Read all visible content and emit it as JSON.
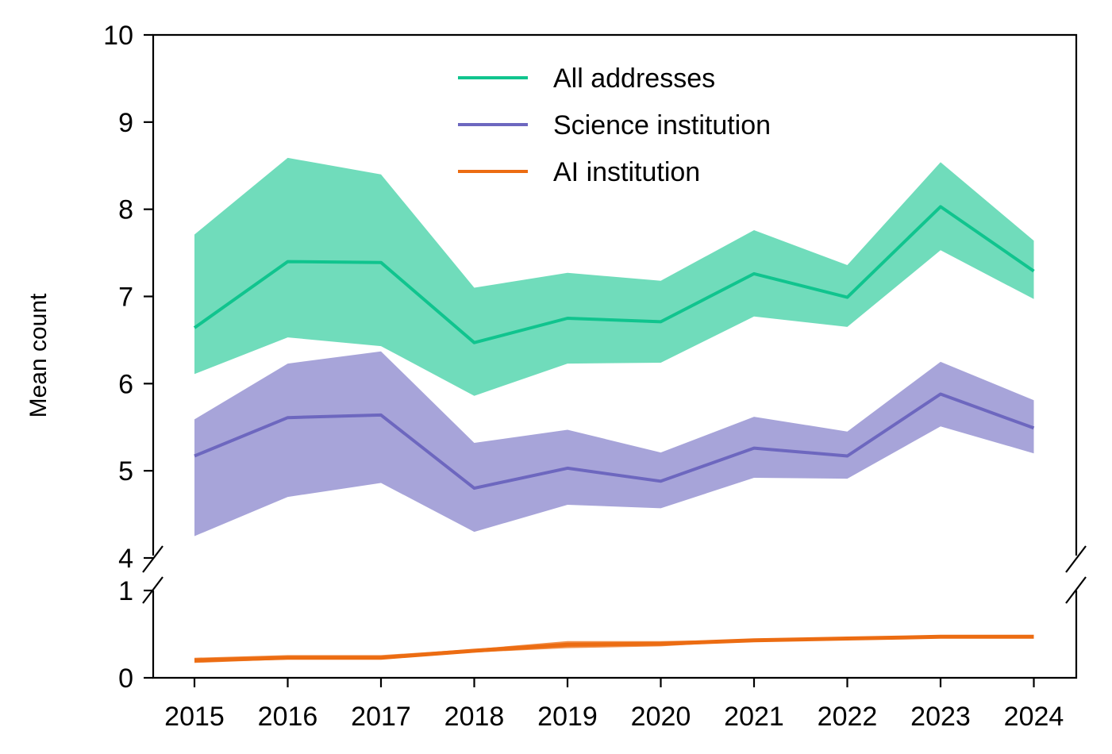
{
  "chart_data": {
    "type": "line",
    "ylabel": "Mean count",
    "xlabel": "",
    "x": [
      2015,
      2016,
      2017,
      2018,
      2019,
      2020,
      2021,
      2022,
      2023,
      2024
    ],
    "broken_y_axis": true,
    "upper_panel": {
      "ylim": [
        4,
        10
      ],
      "yticks": [
        4,
        5,
        6,
        7,
        8,
        9,
        10
      ]
    },
    "lower_panel": {
      "ylim": [
        0,
        1
      ],
      "yticks": [
        0,
        1
      ]
    },
    "legend_position": "top-center",
    "series": [
      {
        "name": "All addresses",
        "color": "#10c48e",
        "band_color": "#9de9d3",
        "panel": "upper",
        "values": [
          6.64,
          7.4,
          7.39,
          6.47,
          6.75,
          6.71,
          7.26,
          6.99,
          8.03,
          7.29
        ],
        "ci_low": [
          6.11,
          6.53,
          6.43,
          5.86,
          6.23,
          6.24,
          6.77,
          6.65,
          7.53,
          6.97
        ],
        "ci_high": [
          7.71,
          8.59,
          8.4,
          7.1,
          7.27,
          7.18,
          7.76,
          7.36,
          8.54,
          7.64
        ]
      },
      {
        "name": "Science institution",
        "color": "#6d67bf",
        "band_color": "#c4c1e4",
        "panel": "upper",
        "values": [
          5.17,
          5.61,
          5.64,
          4.8,
          5.03,
          4.88,
          5.26,
          5.17,
          5.88,
          5.49
        ],
        "ci_low": [
          4.25,
          4.7,
          4.86,
          4.3,
          4.61,
          4.57,
          4.92,
          4.91,
          5.51,
          5.2
        ],
        "ci_high": [
          5.59,
          6.23,
          6.37,
          5.32,
          5.47,
          5.21,
          5.62,
          5.45,
          6.25,
          5.81
        ]
      },
      {
        "name": "AI institution",
        "color": "#ec6c12",
        "band_color": "#f5b48a",
        "panel": "lower",
        "values": [
          0.2,
          0.23,
          0.23,
          0.31,
          0.38,
          0.39,
          0.43,
          0.45,
          0.47,
          0.47
        ],
        "ci_low": [
          0.17,
          0.21,
          0.21,
          0.29,
          0.34,
          0.36,
          0.42,
          0.44,
          0.46,
          0.46
        ],
        "ci_high": [
          0.23,
          0.26,
          0.26,
          0.33,
          0.42,
          0.42,
          0.44,
          0.46,
          0.48,
          0.48
        ]
      }
    ]
  }
}
